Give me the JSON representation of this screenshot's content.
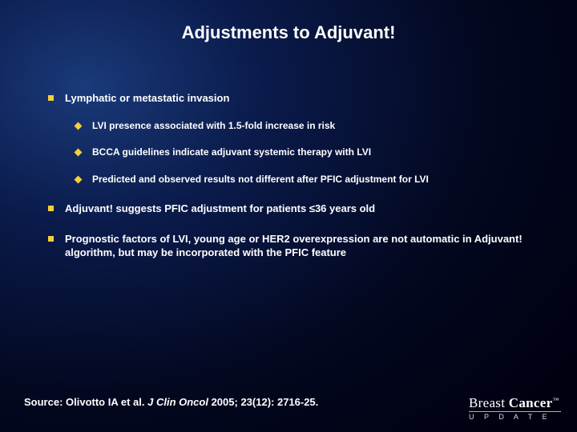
{
  "title": "Adjustments to Adjuvant!",
  "bullets": [
    {
      "text": "Lymphatic or metastatic invasion",
      "children": [
        "LVI presence associated with 1.5-fold increase in risk",
        "BCCA guidelines indicate adjuvant systemic therapy with LVI",
        "Predicted and observed results not different after PFIC adjustment for LVI"
      ]
    },
    {
      "text": "Adjuvant! suggests PFIC adjustment for patients ≤36 years old",
      "children": []
    },
    {
      "text": "Prognostic factors of LVI, young age or HER2 overexpression are not automatic in Adjuvant! algorithm, but may be incorporated with the PFIC feature",
      "children": []
    }
  ],
  "source": {
    "prefix": "Source: Olivotto IA et al. ",
    "journal": "J Clin Oncol ",
    "suffix": "2005; 23(12): 2716-25."
  },
  "logo": {
    "line1a": "Breast",
    "line1b": "Cancer",
    "tm": "™",
    "line2": "U P D A T E"
  },
  "colors": {
    "bullet": "#f5cf3a",
    "text": "#ffffff"
  }
}
